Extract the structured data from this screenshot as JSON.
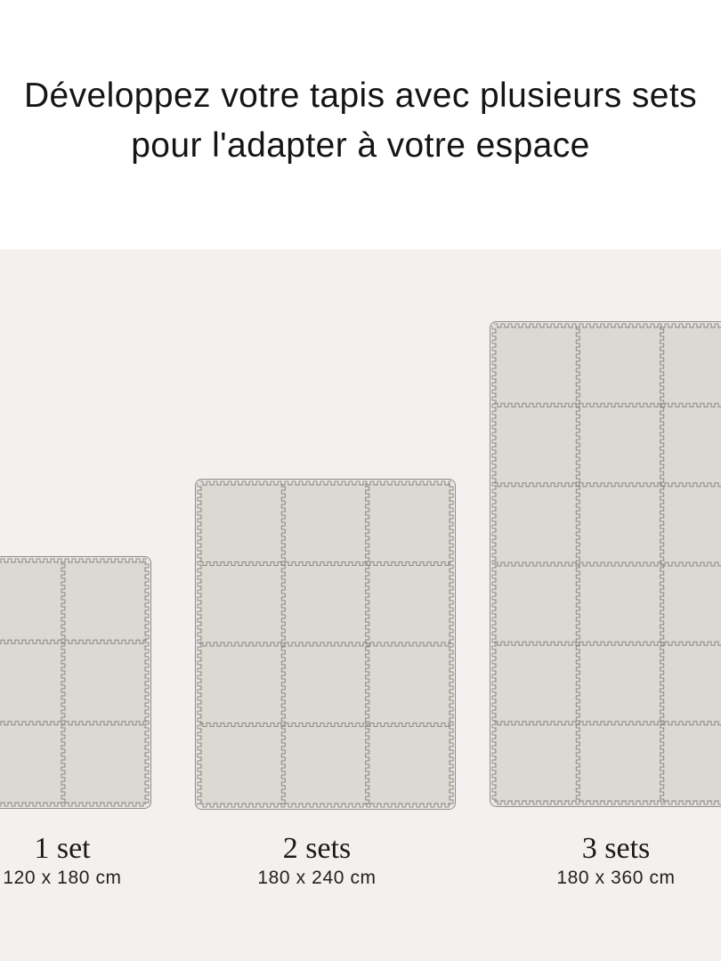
{
  "title": {
    "line1": "Développez votre tapis avec plusieurs sets",
    "line2": "pour l'adapter à votre espace"
  },
  "mats": [
    {
      "label": "1 set",
      "dimensions": "120 x 180 cm",
      "columns": 2,
      "rows": 3,
      "clipped_edge": "left"
    },
    {
      "label": "2 sets",
      "dimensions": "180 x 240 cm",
      "columns": 3,
      "rows": 4,
      "clipped_edge": "none"
    },
    {
      "label": "3 sets",
      "dimensions": "180 x 360 cm",
      "columns": 3,
      "rows": 6,
      "clipped_edge": "right"
    }
  ],
  "colors": {
    "page_background": "#FFFFFF",
    "stage_background": "#F3F1EF",
    "tile_fill": "#DCD8D2",
    "mat_margin_fill": "#EAE7E3",
    "mat_border": "#8E8D8A",
    "seam_line": "#8A8987",
    "text": "#1B1918"
  }
}
